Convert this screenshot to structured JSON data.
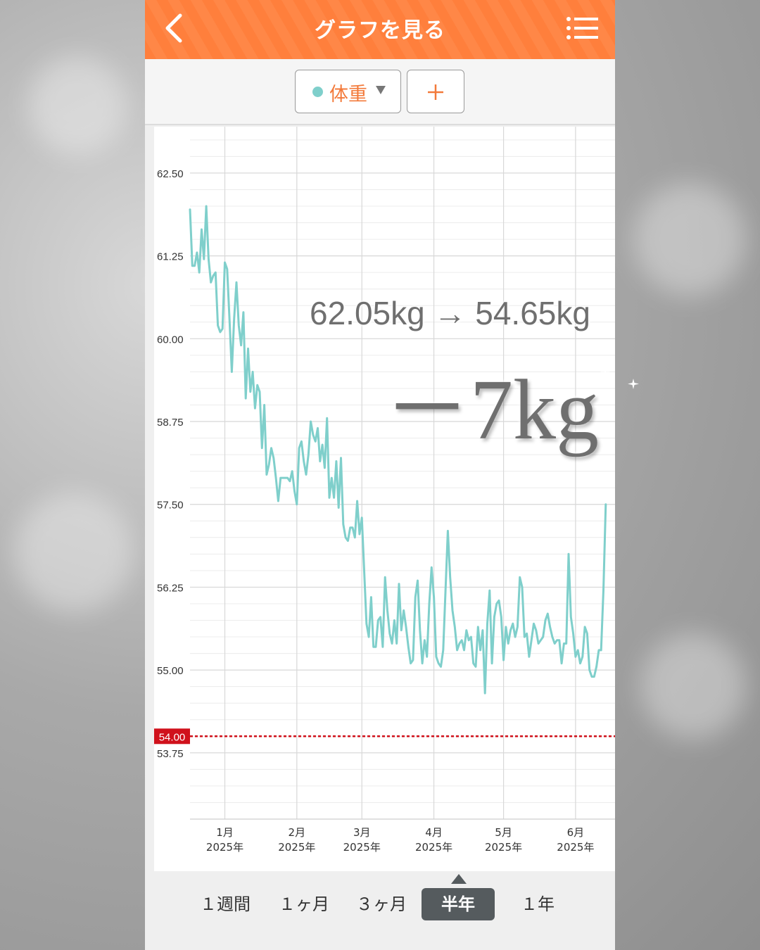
{
  "header": {
    "title": "グラフを見る",
    "back_icon": "chevron-left-icon",
    "menu_icon": "list-menu-icon"
  },
  "selector": {
    "metric_label": "体重",
    "metric_color": "#7fcfcb",
    "add_label": "+"
  },
  "overlay": {
    "change_text": "62.05kg → 54.65kg",
    "loss_text": "－7kg"
  },
  "tabs": [
    {
      "label": "１週間",
      "active": false
    },
    {
      "label": "１ヶ月",
      "active": false
    },
    {
      "label": "３ヶ月",
      "active": false
    },
    {
      "label": "半年",
      "active": true
    },
    {
      "label": "１年",
      "active": false
    }
  ],
  "colors": {
    "accent": "#ff7f3c",
    "line": "#7fcfcb",
    "goal": "#d0111b",
    "tab_active": "#555b5e"
  },
  "chart_data": {
    "type": "line",
    "y_ticks": [
      "62.50",
      "61.25",
      "60.00",
      "58.75",
      "57.50",
      "56.25",
      "55.00",
      "53.75"
    ],
    "ylim": [
      52.75,
      63.2
    ],
    "x_ticks": [
      {
        "month": "1月",
        "year": "2025年",
        "date": "2025-01-01"
      },
      {
        "month": "2月",
        "year": "2025年",
        "date": "2025-02-01"
      },
      {
        "month": "3月",
        "year": "2025年",
        "date": "2025-03-01"
      },
      {
        "month": "4月",
        "year": "2025年",
        "date": "2025-04-01"
      },
      {
        "month": "5月",
        "year": "2025年",
        "date": "2025-05-01"
      },
      {
        "month": "6月",
        "year": "2025年",
        "date": "2025-06-01"
      }
    ],
    "xlim": [
      "2024-12-17",
      "2025-06-18"
    ],
    "goal": {
      "label": "54.00",
      "value": 54.0
    },
    "grid": true,
    "series": [
      {
        "color": "#7fcfcb",
        "points": [
          [
            "2024-12-17",
            61.95
          ],
          [
            "2024-12-18",
            61.1
          ],
          [
            "2024-12-19",
            61.1
          ],
          [
            "2024-12-20",
            61.3
          ],
          [
            "2024-12-21",
            61.0
          ],
          [
            "2024-12-22",
            61.65
          ],
          [
            "2024-12-23",
            61.2
          ],
          [
            "2024-12-24",
            62.0
          ],
          [
            "2024-12-25",
            61.2
          ],
          [
            "2024-12-26",
            60.85
          ],
          [
            "2024-12-27",
            60.95
          ],
          [
            "2024-12-28",
            61.0
          ],
          [
            "2024-12-29",
            60.2
          ],
          [
            "2024-12-30",
            60.1
          ],
          [
            "2024-12-31",
            60.15
          ],
          [
            "2025-01-01",
            61.15
          ],
          [
            "2025-01-02",
            61.05
          ],
          [
            "2025-01-03",
            60.3
          ],
          [
            "2025-01-04",
            59.5
          ],
          [
            "2025-01-05",
            60.3
          ],
          [
            "2025-01-06",
            60.85
          ],
          [
            "2025-01-07",
            60.2
          ],
          [
            "2025-01-08",
            59.9
          ],
          [
            "2025-01-09",
            60.4
          ],
          [
            "2025-01-10",
            59.1
          ],
          [
            "2025-01-11",
            59.85
          ],
          [
            "2025-01-12",
            59.2
          ],
          [
            "2025-01-13",
            59.5
          ],
          [
            "2025-01-14",
            58.95
          ],
          [
            "2025-01-15",
            59.3
          ],
          [
            "2025-01-16",
            59.2
          ],
          [
            "2025-01-17",
            58.35
          ],
          [
            "2025-01-18",
            59.0
          ],
          [
            "2025-01-19",
            57.95
          ],
          [
            "2025-01-20",
            58.1
          ],
          [
            "2025-01-21",
            58.35
          ],
          [
            "2025-01-22",
            58.2
          ],
          [
            "2025-01-23",
            57.9
          ],
          [
            "2025-01-24",
            57.55
          ],
          [
            "2025-01-25",
            57.9
          ],
          [
            "2025-01-26",
            57.9
          ],
          [
            "2025-01-27",
            57.9
          ],
          [
            "2025-01-28",
            57.9
          ],
          [
            "2025-01-29",
            57.85
          ],
          [
            "2025-01-30",
            58.0
          ],
          [
            "2025-01-31",
            57.7
          ],
          [
            "2025-02-01",
            57.5
          ],
          [
            "2025-02-02",
            58.35
          ],
          [
            "2025-02-03",
            58.45
          ],
          [
            "2025-02-04",
            58.15
          ],
          [
            "2025-02-05",
            57.95
          ],
          [
            "2025-02-06",
            58.25
          ],
          [
            "2025-02-07",
            58.75
          ],
          [
            "2025-02-08",
            58.55
          ],
          [
            "2025-02-09",
            58.45
          ],
          [
            "2025-02-10",
            58.65
          ],
          [
            "2025-02-11",
            58.15
          ],
          [
            "2025-02-12",
            58.4
          ],
          [
            "2025-02-13",
            58.05
          ],
          [
            "2025-02-14",
            58.8
          ],
          [
            "2025-02-15",
            57.6
          ],
          [
            "2025-02-16",
            57.9
          ],
          [
            "2025-02-17",
            57.6
          ],
          [
            "2025-02-18",
            58.15
          ],
          [
            "2025-02-19",
            57.45
          ],
          [
            "2025-02-20",
            58.2
          ],
          [
            "2025-02-21",
            57.2
          ],
          [
            "2025-02-22",
            57.0
          ],
          [
            "2025-02-23",
            56.95
          ],
          [
            "2025-02-24",
            57.15
          ],
          [
            "2025-02-25",
            57.15
          ],
          [
            "2025-02-26",
            57.0
          ],
          [
            "2025-02-27",
            57.55
          ],
          [
            "2025-02-28",
            57.05
          ],
          [
            "2025-03-01",
            57.3
          ],
          [
            "2025-03-02",
            56.5
          ],
          [
            "2025-03-03",
            55.7
          ],
          [
            "2025-03-04",
            55.5
          ],
          [
            "2025-03-05",
            56.1
          ],
          [
            "2025-03-06",
            55.35
          ],
          [
            "2025-03-07",
            55.35
          ],
          [
            "2025-03-08",
            55.75
          ],
          [
            "2025-03-09",
            55.8
          ],
          [
            "2025-03-10",
            55.35
          ],
          [
            "2025-03-11",
            56.4
          ],
          [
            "2025-03-12",
            55.9
          ],
          [
            "2025-03-13",
            55.55
          ],
          [
            "2025-03-14",
            55.4
          ],
          [
            "2025-03-15",
            55.75
          ],
          [
            "2025-03-16",
            55.4
          ],
          [
            "2025-03-17",
            56.3
          ],
          [
            "2025-03-18",
            55.6
          ],
          [
            "2025-03-19",
            55.9
          ],
          [
            "2025-03-20",
            55.65
          ],
          [
            "2025-03-21",
            55.35
          ],
          [
            "2025-03-22",
            55.1
          ],
          [
            "2025-03-23",
            55.15
          ],
          [
            "2025-03-24",
            56.1
          ],
          [
            "2025-03-25",
            56.35
          ],
          [
            "2025-03-26",
            55.6
          ],
          [
            "2025-03-27",
            55.1
          ],
          [
            "2025-03-28",
            55.45
          ],
          [
            "2025-03-29",
            55.2
          ],
          [
            "2025-03-30",
            56.0
          ],
          [
            "2025-03-31",
            56.55
          ],
          [
            "2025-04-01",
            56.1
          ],
          [
            "2025-04-02",
            55.2
          ],
          [
            "2025-04-03",
            55.1
          ],
          [
            "2025-04-04",
            55.05
          ],
          [
            "2025-04-05",
            55.3
          ],
          [
            "2025-04-06",
            56.2
          ],
          [
            "2025-04-07",
            57.1
          ],
          [
            "2025-04-08",
            56.4
          ],
          [
            "2025-04-09",
            55.9
          ],
          [
            "2025-04-10",
            55.65
          ],
          [
            "2025-04-11",
            55.3
          ],
          [
            "2025-04-12",
            55.4
          ],
          [
            "2025-04-13",
            55.45
          ],
          [
            "2025-04-14",
            55.3
          ],
          [
            "2025-04-15",
            55.6
          ],
          [
            "2025-04-16",
            55.45
          ],
          [
            "2025-04-17",
            55.5
          ],
          [
            "2025-04-18",
            55.1
          ],
          [
            "2025-04-19",
            55.05
          ],
          [
            "2025-04-20",
            55.65
          ],
          [
            "2025-04-21",
            55.3
          ],
          [
            "2025-04-22",
            55.6
          ],
          [
            "2025-04-23",
            54.65
          ],
          [
            "2025-04-24",
            55.7
          ],
          [
            "2025-04-25",
            56.2
          ],
          [
            "2025-04-26",
            55.1
          ],
          [
            "2025-04-27",
            55.8
          ],
          [
            "2025-04-28",
            56.0
          ],
          [
            "2025-04-29",
            56.05
          ],
          [
            "2025-04-30",
            55.8
          ],
          [
            "2025-05-01",
            55.15
          ],
          [
            "2025-05-02",
            55.65
          ],
          [
            "2025-05-03",
            55.4
          ],
          [
            "2025-05-04",
            55.6
          ],
          [
            "2025-05-05",
            55.7
          ],
          [
            "2025-05-06",
            55.5
          ],
          [
            "2025-05-07",
            55.65
          ],
          [
            "2025-05-08",
            56.4
          ],
          [
            "2025-05-09",
            56.25
          ],
          [
            "2025-05-10",
            55.5
          ],
          [
            "2025-05-11",
            55.55
          ],
          [
            "2025-05-12",
            55.2
          ],
          [
            "2025-05-13",
            55.45
          ],
          [
            "2025-05-14",
            55.7
          ],
          [
            "2025-05-15",
            55.6
          ],
          [
            "2025-05-16",
            55.4
          ],
          [
            "2025-05-17",
            55.45
          ],
          [
            "2025-05-18",
            55.5
          ],
          [
            "2025-05-19",
            55.75
          ],
          [
            "2025-05-20",
            55.85
          ],
          [
            "2025-05-21",
            55.65
          ],
          [
            "2025-05-22",
            55.5
          ],
          [
            "2025-05-23",
            55.4
          ],
          [
            "2025-05-24",
            55.45
          ],
          [
            "2025-05-25",
            55.45
          ],
          [
            "2025-05-26",
            55.1
          ],
          [
            "2025-05-27",
            55.4
          ],
          [
            "2025-05-28",
            55.4
          ],
          [
            "2025-05-29",
            56.75
          ],
          [
            "2025-05-30",
            55.8
          ],
          [
            "2025-05-31",
            55.55
          ],
          [
            "2025-06-01",
            55.2
          ],
          [
            "2025-06-02",
            55.3
          ],
          [
            "2025-06-03",
            55.1
          ],
          [
            "2025-06-04",
            55.2
          ],
          [
            "2025-06-05",
            55.65
          ],
          [
            "2025-06-06",
            55.55
          ],
          [
            "2025-06-07",
            55.0
          ],
          [
            "2025-06-08",
            54.9
          ],
          [
            "2025-06-09",
            54.9
          ],
          [
            "2025-06-10",
            55.05
          ],
          [
            "2025-06-11",
            55.3
          ],
          [
            "2025-06-12",
            55.3
          ],
          [
            "2025-06-13",
            56.2
          ],
          [
            "2025-06-14",
            57.5
          ]
        ]
      }
    ]
  }
}
